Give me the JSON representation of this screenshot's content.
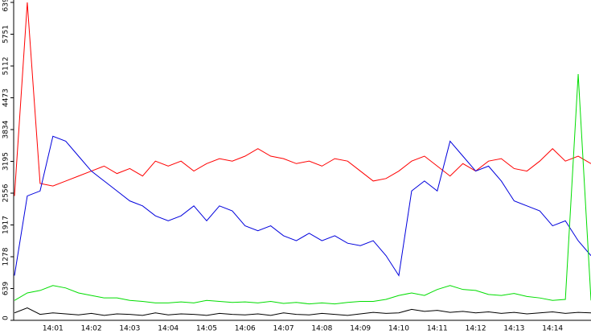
{
  "chart_data": {
    "type": "line",
    "categories": [
      null,
      null,
      null,
      "14:01",
      null,
      null,
      "14:02",
      null,
      null,
      "14:03",
      null,
      null,
      "14:04",
      null,
      null,
      "14:05",
      null,
      null,
      "14:06",
      null,
      null,
      "14:07",
      null,
      null,
      "14:08",
      null,
      null,
      "14:09",
      null,
      null,
      "14:10",
      null,
      null,
      "14:11",
      null,
      null,
      "14:12",
      null,
      null,
      "14:13",
      null,
      null,
      "14:14",
      null,
      null,
      null
    ],
    "series": [
      {
        "color": "#ff0000",
        "values": [
          2500,
          6390,
          2750,
          2700,
          2800,
          2900,
          3000,
          3100,
          2950,
          3050,
          2900,
          3200,
          3100,
          3200,
          3000,
          3150,
          3250,
          3200,
          3300,
          3450,
          3300,
          3250,
          3150,
          3200,
          3100,
          3250,
          3200,
          3000,
          2800,
          2850,
          3000,
          3200,
          3300,
          3100,
          2900,
          3150,
          3000,
          3200,
          3250,
          3050,
          3000,
          3200,
          3450,
          3200,
          3300,
          3150
        ]
      },
      {
        "color": "#0000dd",
        "values": [
          900,
          2500,
          2600,
          3700,
          3600,
          3300,
          3000,
          2800,
          2600,
          2400,
          2300,
          2100,
          2000,
          2100,
          2300,
          2000,
          2300,
          2200,
          1900,
          1800,
          1900,
          1700,
          1600,
          1750,
          1600,
          1700,
          1550,
          1500,
          1600,
          1300,
          900,
          2600,
          2800,
          2600,
          3600,
          3300,
          3000,
          3100,
          2800,
          2400,
          2300,
          2200,
          1900,
          2000,
          1600,
          1300
        ]
      },
      {
        "color": "#00dd00",
        "values": [
          400,
          550,
          600,
          700,
          650,
          550,
          500,
          450,
          450,
          400,
          380,
          350,
          350,
          370,
          350,
          400,
          380,
          360,
          370,
          350,
          380,
          340,
          360,
          330,
          350,
          330,
          360,
          380,
          380,
          420,
          500,
          550,
          500,
          620,
          700,
          620,
          600,
          520,
          500,
          540,
          480,
          450,
          400,
          420,
          4950,
          400
        ]
      },
      {
        "color": "#000000",
        "values": [
          150,
          250,
          120,
          150,
          130,
          110,
          140,
          100,
          130,
          120,
          100,
          150,
          110,
          130,
          120,
          100,
          140,
          120,
          110,
          130,
          100,
          150,
          120,
          110,
          140,
          120,
          100,
          130,
          160,
          140,
          150,
          220,
          180,
          200,
          160,
          180,
          150,
          170,
          140,
          160,
          130,
          150,
          170,
          140,
          160,
          150
        ]
      }
    ],
    "ylim": [
      0,
      6390
    ],
    "yticks": [
      0,
      639,
      1278,
      1917,
      2556,
      3195,
      3834,
      4473,
      5112,
      5751,
      6390
    ]
  }
}
